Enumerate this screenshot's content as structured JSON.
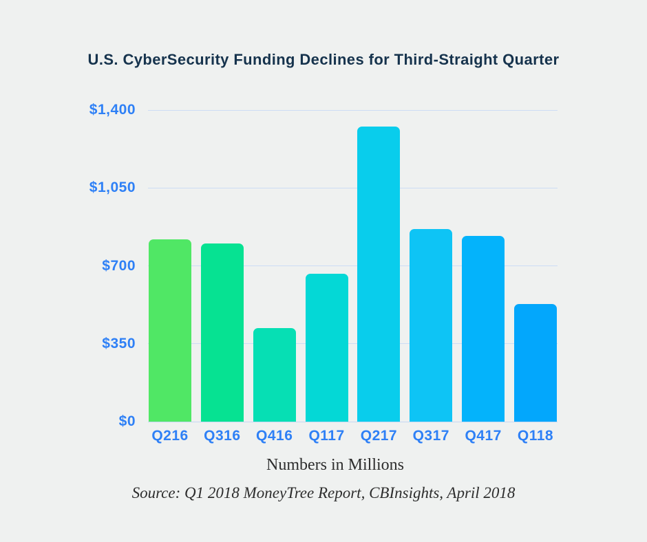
{
  "title": "U.S. CyberSecurity Funding Declines for Third-Straight Quarter",
  "chart_data": {
    "type": "bar",
    "categories": [
      "Q216",
      "Q316",
      "Q416",
      "Q117",
      "Q217",
      "Q317",
      "Q417",
      "Q118"
    ],
    "values": [
      820,
      800,
      420,
      665,
      1325,
      865,
      835,
      530
    ],
    "bar_colors": [
      "#50e765",
      "#06e292",
      "#06dfb4",
      "#04d8d6",
      "#09cdec",
      "#0ec4f5",
      "#04b3fb",
      "#03a7fc"
    ],
    "title": "U.S. CyberSecurity Funding Declines for Third-Straight Quarter",
    "xlabel": "Numbers in Millions",
    "ylabel": "",
    "ylim": [
      0,
      1400
    ],
    "yticks": [
      0,
      350,
      700,
      1050,
      1400
    ],
    "ytick_labels": [
      "$0",
      "$350",
      "$700",
      "$1,050",
      "$1,400"
    ],
    "grid": true,
    "legend": false,
    "units_note": "Numbers in Millions",
    "source": "Source: Q1 2018 MoneyTree Report, CBInsights, April 2018"
  },
  "colors": {
    "background": "#eff1f0",
    "title_text": "#16334d",
    "axis_text": "#2e80f6",
    "gridline": "#ccdcf5",
    "footer_text": "#2d2d2d"
  }
}
